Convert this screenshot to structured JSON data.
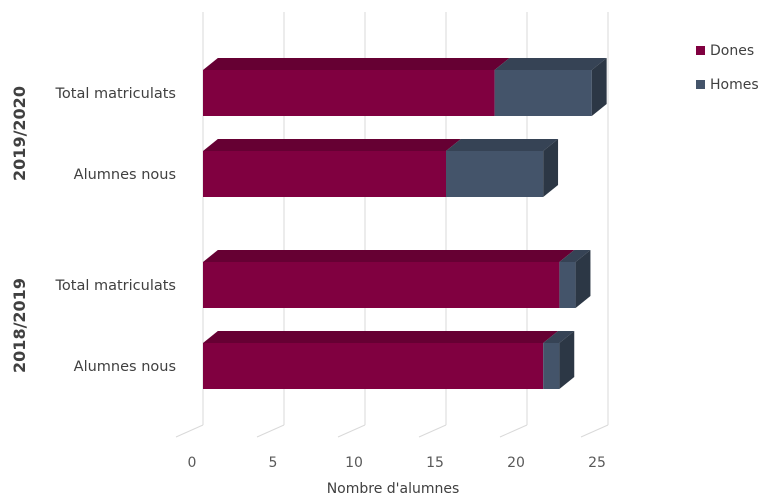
{
  "chart_data": {
    "type": "bar",
    "orientation": "horizontal",
    "stacked": true,
    "three_d": true,
    "groups": [
      {
        "label": "2019/2020",
        "categories": [
          "Total matriculats",
          "Alumnes nous"
        ]
      },
      {
        "label": "2018/2019",
        "categories": [
          "Total matriculats",
          "Alumnes nous"
        ]
      }
    ],
    "categories": [
      "Total matriculats",
      "Alumnes nous",
      "Total matriculats",
      "Alumnes nous"
    ],
    "series": [
      {
        "name": "Dones",
        "values": [
          18,
          15,
          22,
          21
        ],
        "color": "#800040"
      },
      {
        "name": "Homes",
        "values": [
          6,
          6,
          1,
          1
        ],
        "color": "#44546a"
      }
    ],
    "xlabel": "Nombre d'alumnes",
    "ylabel": "",
    "xlim": [
      0,
      25
    ],
    "xticks": [
      0,
      5,
      10,
      15,
      20,
      25
    ],
    "grid": true,
    "legend_position": "top-right"
  }
}
